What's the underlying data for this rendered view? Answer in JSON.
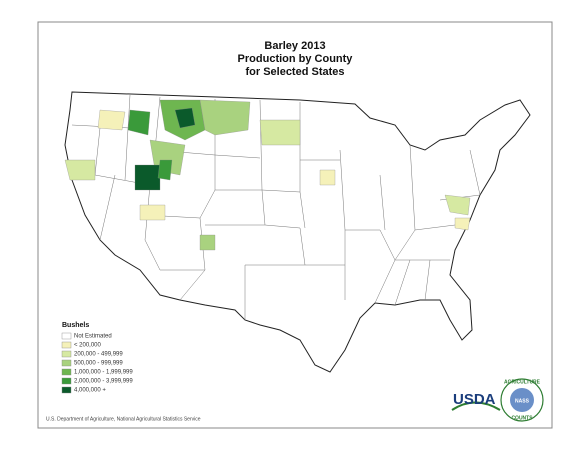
{
  "header": {
    "title_lines": [
      "Barley 2013",
      "Production by County",
      "for Selected States"
    ]
  },
  "legend": {
    "title": "Bushels",
    "items": [
      {
        "label": "Not Estimated",
        "color": "#ffffff"
      },
      {
        "label": "< 200,000",
        "color": "#f5f1b9"
      },
      {
        "label": "200,000 -    499,999",
        "color": "#d6e9a2"
      },
      {
        "label": "500,000 -    999,999",
        "color": "#a9d27f"
      },
      {
        "label": "1,000,000 - 1,999,999",
        "color": "#6eb650"
      },
      {
        "label": "2,000,000 - 3,999,999",
        "color": "#3a9a3a"
      },
      {
        "label": "4,000,000 +",
        "color": "#0b5a2b"
      }
    ]
  },
  "footer": "U.S. Department of Agriculture, National Agricultural Statistics Service",
  "logo": {
    "text": "USDA",
    "ring_top": "AGRICULTURE",
    "ring_bottom": "COUNTS",
    "center": "NASS"
  }
}
